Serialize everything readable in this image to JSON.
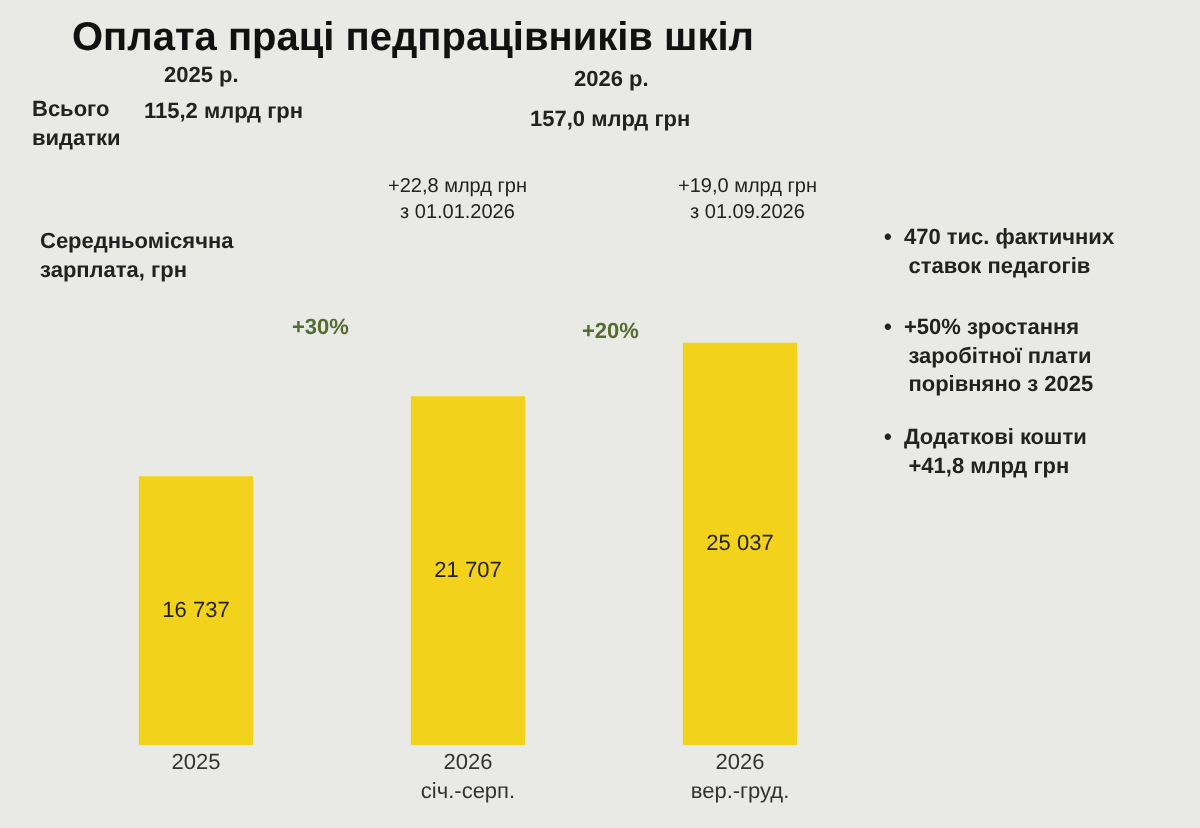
{
  "chart_data": {
    "type": "bar",
    "title": "Оплата праці педпрацівників шкіл",
    "categories": [
      "2025",
      "2026\nсіч.-серп.",
      "2026\nвер.-груд."
    ],
    "values": [
      16737,
      21707,
      25037
    ],
    "value_labels": [
      "16 737",
      "21 707",
      "25 037"
    ],
    "color": "#f2d21b",
    "tick_labels": "x",
    "annotations": [
      "2025 р.",
      "Всього\nвидатки",
      "115,2 млрд грн",
      "2026 р.",
      "157,0 млрд грн",
      "+22,8 млрд грн\nз 01.01.2026",
      "+19,0 млрд грн\nз 01.09.2026",
      "Середньомісячна\nзарплата, грн",
      "+30%",
      "+20%",
      "•  470 тис. фактичних\n    ставок педагогів",
      "•  +50% зростання\n    заробітної плати\n    порівняно з 2025",
      "•  Додаткові кошти\n    +41,8 млрд грн"
    ]
  }
}
